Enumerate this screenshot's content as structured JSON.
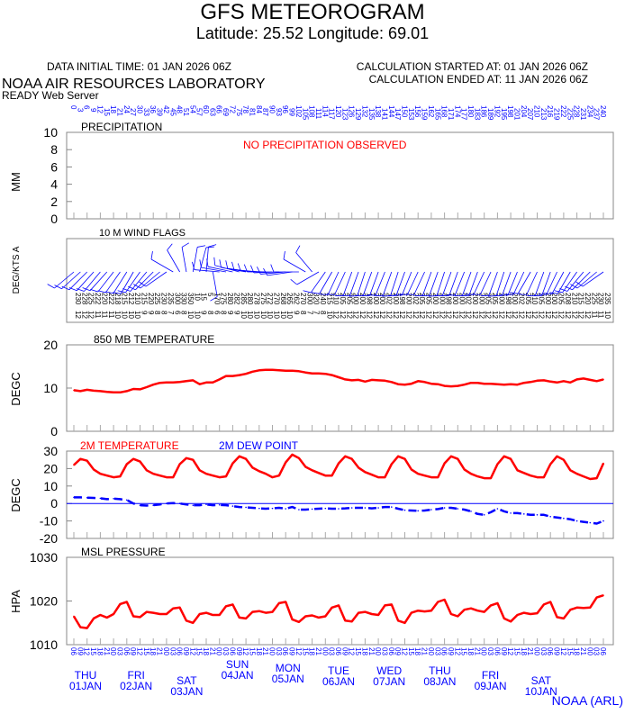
{
  "header": {
    "title": "GFS METEOROGRAM",
    "location": "Latitude: 25.52 Longitude:  69.01",
    "initial_time": "DATA INITIAL TIME: 01 JAN 2026 06Z",
    "calc_started": "CALCULATION STARTED AT: 01 JAN 2026 06Z",
    "calc_ended": "CALCULATION ENDED AT: 11 JAN 2026 06Z",
    "lab": "NOAA AIR RESOURCES LABORATORY",
    "server": "READY Web Server",
    "credit": "NOAA (ARL)"
  },
  "colors": {
    "temp": "#ff0000",
    "dew": "#0000ff",
    "axis_text": "#0000ff",
    "wind": "#0000ff",
    "zero_line": "#0000ff"
  },
  "x_axis": {
    "forecast_hours_step": 3,
    "forecast_hours_max": 240,
    "days": [
      {
        "dow": "THU",
        "date": "01JAN"
      },
      {
        "dow": "FRI",
        "date": "02JAN"
      },
      {
        "dow": "SAT",
        "date": "03JAN"
      },
      {
        "dow": "SUN",
        "date": "04JAN"
      },
      {
        "dow": "MON",
        "date": "05JAN"
      },
      {
        "dow": "TUE",
        "date": "06JAN"
      },
      {
        "dow": "WED",
        "date": "07JAN"
      },
      {
        "dow": "THU",
        "date": "08JAN"
      },
      {
        "dow": "FRI",
        "date": "09JAN"
      },
      {
        "dow": "SAT",
        "date": "10JAN"
      }
    ]
  },
  "chart_data": [
    {
      "type": "line",
      "title": "PRECIPITATION",
      "ylabel": "MM",
      "ylim": [
        0,
        10
      ],
      "yticks": [
        "0",
        "2",
        "4",
        "6",
        "8",
        "10"
      ],
      "annotation": "NO PRECIPITATION OBSERVED",
      "series": []
    },
    {
      "type": "wind-barbs",
      "title": "10 M  WIND FLAGS",
      "ylabel": "DEG/KTS  A",
      "direction_deg": [
        230,
        228,
        225,
        222,
        220,
        222,
        218,
        215,
        212,
        210,
        215,
        220,
        225,
        230,
        235,
        300,
        330,
        350,
        10,
        15,
        5,
        170,
        275,
        280,
        282,
        285,
        280,
        278,
        275,
        272,
        270,
        268,
        265,
        262,
        270,
        300,
        320,
        240,
        215,
        210,
        205,
        205,
        200,
        200,
        198,
        200,
        200,
        202,
        200,
        198,
        200,
        202,
        205,
        205,
        200,
        200,
        198,
        200,
        200,
        202,
        200,
        200,
        205,
        205,
        200,
        198,
        200,
        202,
        205,
        210,
        205,
        200,
        200,
        205,
        208,
        210,
        215,
        220,
        225,
        230,
        235
      ],
      "speed_kts": [
        12,
        12,
        12,
        11,
        11,
        11,
        10,
        10,
        10,
        10,
        9,
        9,
        8,
        8,
        7,
        6,
        8,
        10,
        10,
        9,
        8,
        6,
        8,
        9,
        9,
        10,
        10,
        10,
        10,
        10,
        10,
        10,
        10,
        9,
        8,
        7,
        7,
        8,
        10,
        12,
        12,
        12,
        12,
        12,
        12,
        12,
        12,
        12,
        12,
        12,
        12,
        12,
        12,
        12,
        12,
        12,
        12,
        12,
        12,
        12,
        12,
        12,
        12,
        12,
        12,
        12,
        12,
        12,
        12,
        12,
        12,
        12,
        12,
        12,
        12,
        12,
        12,
        12,
        11,
        11,
        10
      ]
    },
    {
      "type": "line",
      "title": "850 MB  TEMPERATURE",
      "ylabel": "DEGC",
      "ylim": [
        0,
        20
      ],
      "yticks": [
        "0",
        "10",
        "20"
      ],
      "series": [
        {
          "values": [
            9.5,
            9.3,
            9.6,
            9.4,
            9.3,
            9.1,
            9.0,
            9.0,
            9.3,
            9.8,
            9.7,
            10.2,
            10.8,
            11.2,
            11.3,
            11.3,
            11.4,
            11.6,
            11.8,
            10.9,
            11.3,
            11.3,
            12.0,
            12.8,
            12.8,
            13.0,
            13.3,
            13.8,
            14.1,
            14.2,
            14.2,
            14.1,
            14.0,
            14.0,
            13.9,
            13.6,
            13.4,
            13.4,
            13.3,
            13.0,
            12.5,
            12.0,
            11.8,
            11.9,
            11.5,
            11.9,
            11.8,
            11.7,
            11.4,
            10.9,
            10.8,
            11.0,
            11.6,
            11.4,
            11.0,
            10.9,
            10.5,
            10.4,
            10.5,
            10.8,
            11.2,
            11.2,
            11.0,
            11.0,
            10.9,
            10.8,
            10.9,
            10.8,
            11.2,
            11.4,
            11.7,
            11.8,
            11.5,
            11.3,
            11.6,
            11.3,
            12.0,
            12.2,
            11.9,
            11.6,
            12.0
          ]
        }
      ]
    },
    {
      "type": "line",
      "title": "",
      "ylabel": "DEGC",
      "ylim": [
        -20,
        30
      ],
      "yticks": [
        "-20",
        "-10",
        "0",
        "10",
        "20",
        "30"
      ],
      "series": [
        {
          "name": "2M TEMPERATURE",
          "values": [
            22,
            25.5,
            24.5,
            19.5,
            17,
            16,
            15,
            15.5,
            22.5,
            25.5,
            24,
            19,
            17,
            16,
            15,
            15,
            22.5,
            26,
            25,
            19,
            17,
            16,
            15,
            15.5,
            23,
            27,
            25.5,
            20.5,
            18.5,
            17,
            15,
            16,
            23.5,
            28,
            26,
            21,
            19,
            17.5,
            16,
            16,
            23,
            27,
            25.5,
            20.5,
            18,
            16.5,
            15,
            15,
            22.5,
            27,
            25.5,
            19.5,
            17,
            16,
            15,
            15,
            23,
            27,
            25.5,
            19.5,
            17,
            15.5,
            14.5,
            14.5,
            22.5,
            27,
            25.5,
            19,
            17.5,
            16,
            15,
            15,
            22.5,
            27,
            25,
            19,
            17,
            15.5,
            14,
            14.5,
            23
          ]
        },
        {
          "name": "2M   DEW POINT",
          "values": [
            3.5,
            3.5,
            3.3,
            3.2,
            3,
            2.5,
            2.8,
            2.5,
            2,
            0,
            -1,
            -1.2,
            -1,
            -0.5,
            0,
            0.2,
            0,
            -0.5,
            -1,
            -1,
            -0.5,
            -1,
            -0.8,
            -1,
            -1.5,
            -2,
            -2.2,
            -2.5,
            -2.8,
            -3,
            -2.8,
            -2.5,
            -3,
            -2,
            -3.5,
            -3.5,
            -3.2,
            -3,
            -2.8,
            -3,
            -3,
            -2.8,
            -2.5,
            -2.5,
            -2.5,
            -2.8,
            -2.5,
            -2,
            -2,
            -3,
            -3.8,
            -4,
            -4.2,
            -4,
            -3.5,
            -3.2,
            -2.5,
            -2.5,
            -3,
            -3.5,
            -4.5,
            -6,
            -6.5,
            -5,
            -3,
            -4.5,
            -5.5,
            -5.5,
            -6,
            -6.5,
            -6.5,
            -6.5,
            -7.5,
            -8,
            -8.5,
            -9,
            -10,
            -10.5,
            -11,
            -11.5,
            -10
          ]
        }
      ]
    },
    {
      "type": "line",
      "title": "MSL PRESSURE",
      "ylabel": "HPA",
      "ylim": [
        1010,
        1030
      ],
      "yticks": [
        "1010",
        "1020",
        "1030"
      ],
      "series": [
        {
          "values": [
            1016.5,
            1014,
            1013.8,
            1016,
            1016.8,
            1016.2,
            1017,
            1019.3,
            1019.8,
            1016.5,
            1016.3,
            1017.5,
            1017.3,
            1017,
            1017,
            1018.3,
            1018.5,
            1015.5,
            1015,
            1017,
            1017.3,
            1016.8,
            1016.8,
            1018.8,
            1019.2,
            1016.2,
            1016,
            1017.5,
            1017.7,
            1017.3,
            1017.5,
            1019.5,
            1019.8,
            1015.8,
            1015.2,
            1016.5,
            1016.7,
            1016.2,
            1016.5,
            1018.5,
            1019,
            1015.5,
            1015.3,
            1017.3,
            1017.5,
            1017,
            1016.8,
            1019,
            1019.2,
            1015.5,
            1015,
            1017.3,
            1017.8,
            1017.6,
            1017.8,
            1019.8,
            1020.3,
            1017,
            1016.5,
            1018,
            1018.3,
            1017.8,
            1017.5,
            1019,
            1019.5,
            1016,
            1015.3,
            1016.8,
            1017.3,
            1017,
            1017.2,
            1019.2,
            1019.8,
            1016.3,
            1016,
            1018,
            1018.5,
            1018.4,
            1018.5,
            1020.8,
            1021.3
          ]
        }
      ]
    }
  ]
}
